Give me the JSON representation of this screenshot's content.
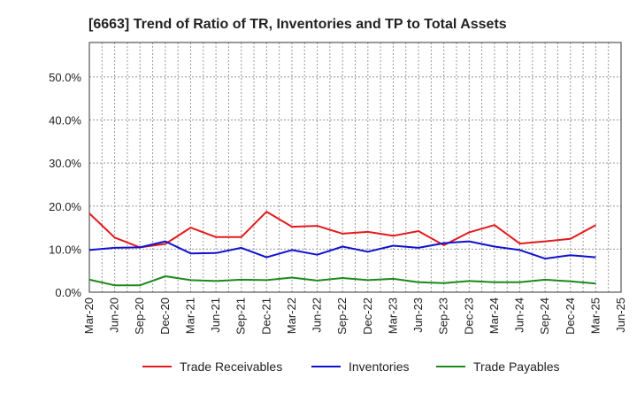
{
  "chart_data": {
    "type": "line",
    "title": "[6663]  Trend of Ratio of TR, Inventories and TP to Total Assets",
    "xlabel": "",
    "ylabel": "",
    "categories": [
      "Mar-20",
      "Jun-20",
      "Sep-20",
      "Dec-20",
      "Mar-21",
      "Jun-21",
      "Sep-21",
      "Dec-21",
      "Mar-22",
      "Jun-22",
      "Sep-22",
      "Dec-22",
      "Mar-23",
      "Jun-23",
      "Sep-23",
      "Dec-23",
      "Mar-24",
      "Jun-24",
      "Sep-24",
      "Dec-24",
      "Mar-25",
      "Jun-25"
    ],
    "ylim": [
      0,
      58
    ],
    "yticks": [
      0,
      10,
      20,
      30,
      40,
      50
    ],
    "ytick_labels": [
      "0.0%",
      "10.0%",
      "20.0%",
      "30.0%",
      "40.0%",
      "50.0%"
    ],
    "grid": true,
    "legend_position": "bottom",
    "series": [
      {
        "name": "Trade Receivables",
        "color": "#e31a1c",
        "values": [
          18.3,
          12.7,
          10.4,
          11.2,
          15.0,
          12.8,
          12.8,
          18.7,
          15.2,
          15.4,
          13.6,
          14.0,
          13.1,
          14.2,
          10.9,
          13.9,
          15.6,
          11.3,
          11.8,
          12.4,
          15.6,
          null
        ]
      },
      {
        "name": "Inventories",
        "color": "#1010d0",
        "values": [
          9.8,
          10.3,
          10.4,
          11.8,
          9.0,
          9.1,
          10.3,
          8.1,
          9.8,
          8.7,
          10.6,
          9.4,
          10.8,
          10.3,
          11.4,
          11.8,
          10.6,
          9.8,
          7.8,
          8.6,
          8.1,
          null
        ]
      },
      {
        "name": "Trade Payables",
        "color": "#1a8a1a",
        "values": [
          2.9,
          1.6,
          1.6,
          3.7,
          2.8,
          2.6,
          2.9,
          2.8,
          3.4,
          2.7,
          3.3,
          2.8,
          3.1,
          2.3,
          2.1,
          2.6,
          2.3,
          2.3,
          2.9,
          2.5,
          2.0,
          null
        ]
      }
    ]
  }
}
